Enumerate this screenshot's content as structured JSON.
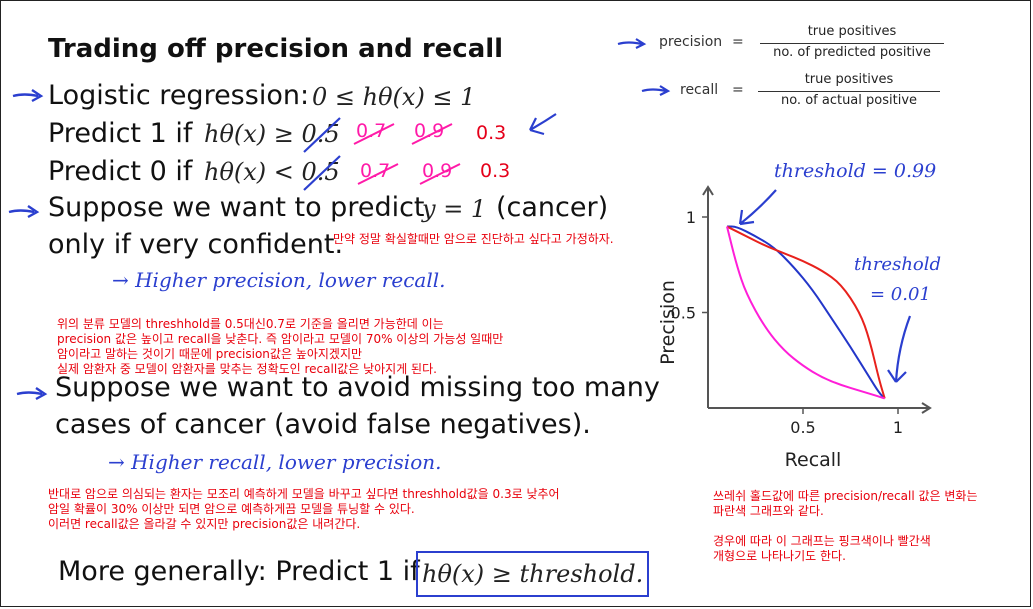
{
  "slide": {
    "title": "Trading off precision and recall",
    "lines": {
      "logistic": "Logistic regression:",
      "logistic_math": "0 ≤ hθ(x) ≤ 1",
      "predict1": "Predict 1 if",
      "predict1_math": "hθ(x) ≥ 0.5",
      "predict0": "Predict 0 if",
      "predict0_math": "hθ(x) < 0.5",
      "suppose1_a": "Suppose we want to predict",
      "suppose1_math": "y = 1",
      "suppose1_b": "(cancer)",
      "suppose1_c": "only if very confident.",
      "suppose2_a": "Suppose we want to avoid missing too many",
      "suppose2_b": "cases of cancer (avoid false negatives).",
      "general": "More generally: Predict 1 if",
      "general_math": "hθ(x) ≥ threshold."
    },
    "handwriting": {
      "alt1_07": "0.7",
      "alt1_09": "0.9",
      "alt1_03": "0.3",
      "alt0_07": "0.7",
      "alt0_09": "0.9",
      "alt0_03": "0.3",
      "higher_precision": "→ Higher precision, lower recall.",
      "higher_recall": "→ Higher recall, lower precision.",
      "threshold_high": "threshold = 0.99",
      "threshold_low_1": "threshold",
      "threshold_low_2": "= 0.01"
    },
    "formulas": {
      "precision_label": "precision",
      "precision_eq": "=",
      "precision_num": "true positives",
      "precision_den": "no. of predicted positive",
      "recall_label": "recall",
      "recall_eq": "=",
      "recall_num": "true positives",
      "recall_den": "no. of actual positive"
    }
  },
  "notes": {
    "note1": "만약 정말 확실할때만 암으로 진단하고 싶다고 가정하자.",
    "note2_l1": "위의 분류 모델의 threshhold를 0.5대신0.7로 기준을 올리면 가능한데 이는",
    "note2_l2": "  precision 값은 높이고 recall을 낮춘다.  즉 암이라고 모델이 70% 이상의 가능성 일때만",
    "note2_l3": "암이라고 말하는 것이기 때문에 precision값은 높아지겠지만",
    "note2_l4": "실제 암환자 중 모델이 암환자를 맞추는 정확도인 recall값은 낮아지게 된다.",
    "note3_l1": "반대로 암으로 의심되는 환자는 모조리 예측하게 모델을 바꾸고 싶다면 threshhold값을 0.3로 낮추어",
    "note3_l2": "암일 확률이 30% 이상만 되면 암으로 예측하게끔 모델을 튜닝할 수 있다.",
    "note3_l3": "이러면 recall값은 올라갈 수 있지만 precision값은 내려간다.",
    "note4_l1": "쓰레쉬 홀드값에 따른 precision/recall 값은 변화는",
    "note4_l2": "파란색 그래프와 같다.",
    "note4_l3": "경우에 따라 이 그래프는 핑크색이나 빨간색",
    "note4_l4": "개형으로 나타나기도 한다."
  },
  "chart_data": {
    "type": "line",
    "xlabel": "Recall",
    "ylabel": "Precision",
    "xlim": [
      0,
      1
    ],
    "ylim": [
      0,
      1
    ],
    "xticks": [
      {
        "value": 0.5,
        "label": "0.5"
      },
      {
        "value": 1,
        "label": "1"
      }
    ],
    "yticks": [
      {
        "value": 0.5,
        "label": "0.5"
      },
      {
        "value": 1,
        "label": "1"
      }
    ],
    "series": [
      {
        "color": "#2336c9",
        "x": [
          0.1,
          0.15,
          0.25,
          0.35,
          0.45,
          0.55,
          0.65,
          0.75,
          0.85,
          0.9,
          0.93
        ],
        "y": [
          0.95,
          0.95,
          0.9,
          0.84,
          0.74,
          0.62,
          0.47,
          0.32,
          0.16,
          0.08,
          0.05
        ]
      },
      {
        "color": "#e8211c",
        "x": [
          0.1,
          0.2,
          0.3,
          0.4,
          0.5,
          0.6,
          0.7,
          0.8,
          0.85,
          0.9,
          0.93
        ],
        "y": [
          0.95,
          0.9,
          0.85,
          0.81,
          0.77,
          0.72,
          0.65,
          0.5,
          0.36,
          0.15,
          0.05
        ]
      },
      {
        "color": "#ff1ed8",
        "x": [
          0.1,
          0.15,
          0.2,
          0.3,
          0.4,
          0.5,
          0.6,
          0.7,
          0.8,
          0.9,
          0.93
        ],
        "y": [
          0.95,
          0.75,
          0.6,
          0.42,
          0.3,
          0.22,
          0.16,
          0.12,
          0.09,
          0.06,
          0.05
        ]
      }
    ],
    "colors": {
      "axis": "#555555",
      "arrow": "#2b3fcf"
    }
  }
}
